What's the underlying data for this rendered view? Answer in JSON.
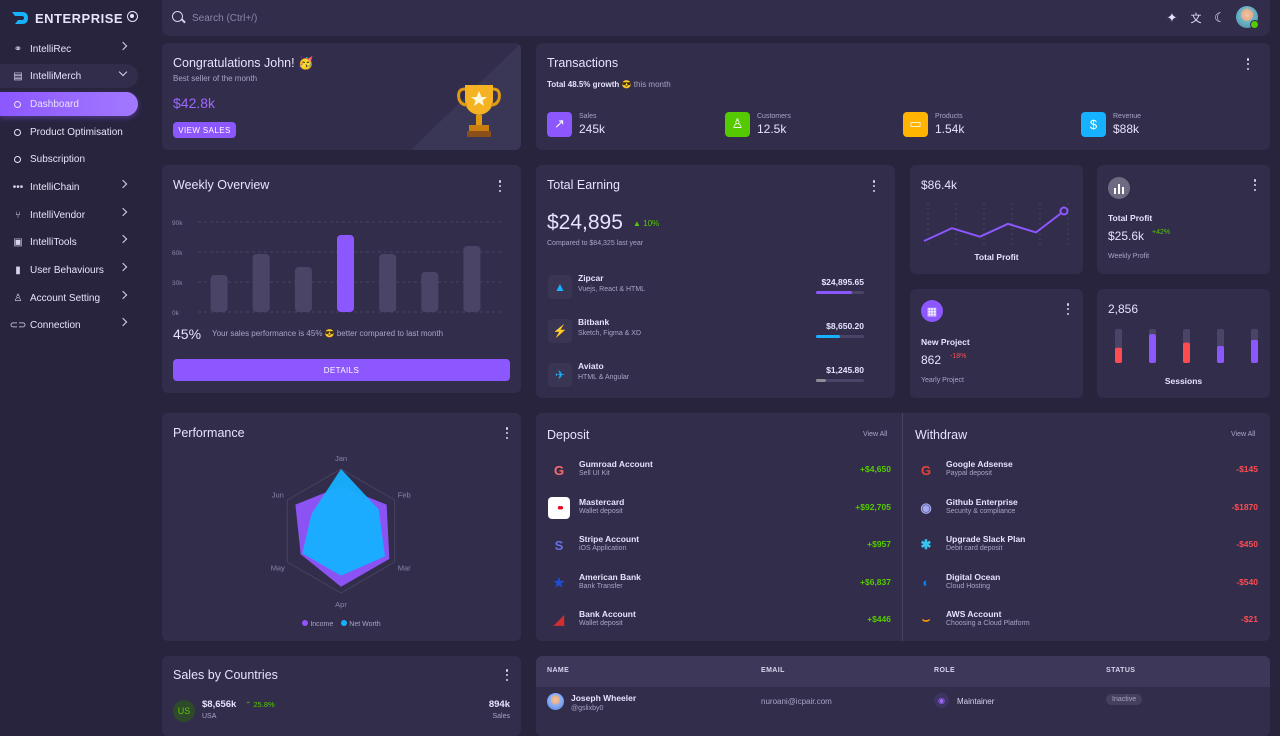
{
  "brand": {
    "name": "ENTERPRISE"
  },
  "sidebar": {
    "items": [
      {
        "label": "IntelliRec",
        "icon": "hierarchy-icon"
      },
      {
        "label": "IntelliMerch",
        "icon": "receipt-search-icon"
      },
      {
        "label": "Dashboard",
        "icon": "circle-icon"
      },
      {
        "label": "Product Optimisation",
        "icon": "circle-icon"
      },
      {
        "label": "Subscription",
        "icon": "circle-icon"
      },
      {
        "label": "IntelliChain",
        "icon": "chain-dots-icon"
      },
      {
        "label": "IntelliVendor",
        "icon": "git-branch-icon"
      },
      {
        "label": "IntelliTools",
        "icon": "toolbox-icon"
      },
      {
        "label": "User Behaviours",
        "icon": "bar-chart-icon"
      },
      {
        "label": "Account Setting",
        "icon": "user-settings-icon"
      },
      {
        "label": "Connection",
        "icon": "link-icon"
      }
    ]
  },
  "search": {
    "placeholder": "Search (Ctrl+/)"
  },
  "congrats": {
    "title": "Congratulations John! 🥳",
    "subtitle": "Best seller of the month",
    "amount": "$42.8k",
    "button": "VIEW SALES"
  },
  "transactions": {
    "title": "Transactions",
    "growth_bold": "Total 48.5% growth",
    "growth_emoji": "😎",
    "growth_rest": "this month",
    "stats": [
      {
        "label": "Sales",
        "value": "245k",
        "color": "#8c57ff",
        "icon": "trending-up-icon"
      },
      {
        "label": "Customers",
        "value": "12.5k",
        "color": "#56ca00",
        "icon": "account-icon"
      },
      {
        "label": "Products",
        "value": "1.54k",
        "color": "#ffb400",
        "icon": "cellphone-link-icon"
      },
      {
        "label": "Revenue",
        "value": "$88k",
        "color": "#16b1ff",
        "icon": "dollar-icon"
      }
    ]
  },
  "weekly": {
    "title": "Weekly Overview",
    "yticks": [
      "90k",
      "60k",
      "30k",
      "0k"
    ],
    "percent": "45%",
    "message": "Your sales performance is 45% 😎 better compared to last month",
    "button": "DETAILS"
  },
  "chart_data": {
    "type": "bar",
    "categories": [
      "",
      "",
      "",
      "",
      "",
      "",
      ""
    ],
    "values": [
      37,
      58,
      45,
      77,
      58,
      40,
      66
    ],
    "ylim": [
      0,
      90
    ],
    "ylabel": "",
    "xlabel": "",
    "title": "",
    "highlight_index": 3
  },
  "earning": {
    "title": "Total Earning",
    "amount": "$24,895",
    "change": "10%",
    "compare": "Compared to $84,325 last year",
    "rows": [
      {
        "name": "Zipcar",
        "desc": "Vuejs, React & HTML",
        "amount": "$24,895.65",
        "progress": 0.75,
        "color": "#8c57ff",
        "icon": "zipcar-icon",
        "glyph": "▲",
        "glyph_color": "#16b1ff"
      },
      {
        "name": "Bitbank",
        "desc": "Sketch, Figma & XD",
        "amount": "$8,650.20",
        "progress": 0.5,
        "color": "#16b1ff",
        "icon": "bolt-icon",
        "glyph": "⚡",
        "glyph_color": "#ffb400"
      },
      {
        "name": "Aviato",
        "desc": "HTML & Angular",
        "amount": "$1,245.80",
        "progress": 0.2,
        "color": "#8a8d93",
        "icon": "aviato-icon",
        "glyph": "✈",
        "glyph_color": "#16b1ff"
      }
    ]
  },
  "profit": {
    "value": "$86.4k",
    "label": "Total Profit",
    "line": [
      2,
      5,
      3,
      6,
      4,
      9
    ]
  },
  "weekly_profit": {
    "title": "Total Profit",
    "value": "$25.6k",
    "change": "+42%",
    "sub": "Weekly Profit"
  },
  "new_project": {
    "title": "New Project",
    "value": "862",
    "change": "-18%",
    "sub": "Yearly Project"
  },
  "sessions": {
    "value": "2,856",
    "label": "Sessions",
    "bars": [
      {
        "fill": 0.45,
        "color": "#ff4c51"
      },
      {
        "fill": 0.85,
        "color": "#8c57ff"
      },
      {
        "fill": 0.6,
        "color": "#ff4c51"
      },
      {
        "fill": 0.5,
        "color": "#8c57ff"
      },
      {
        "fill": 0.68,
        "color": "#8c57ff"
      }
    ]
  },
  "performance": {
    "title": "Performance",
    "axes": [
      "Jan",
      "Feb",
      "Mar",
      "Apr",
      "May",
      "Jun"
    ],
    "income": [
      0.72,
      0.85,
      0.9,
      0.9,
      0.75,
      0.85
    ],
    "networth": [
      1.0,
      0.7,
      0.82,
      0.72,
      0.72,
      0.55
    ],
    "legend": [
      "Income",
      "Net Worth"
    ],
    "colors": [
      "#9155fd",
      "#16b1ff"
    ]
  },
  "deposit": {
    "title": "Deposit",
    "view_all": "View All",
    "items": [
      {
        "name": "Gumroad Account",
        "desc": "Sell UI Kit",
        "amount": "+$4,650",
        "icon": "gumroad-icon",
        "glyph": "G",
        "bg": "transparent",
        "fg": "#ff6b6b"
      },
      {
        "name": "Mastercard",
        "desc": "Wallet deposit",
        "amount": "+$92,705",
        "icon": "mastercard-icon",
        "glyph": "●●",
        "bg": "#ffffff",
        "fg": "#eb001b"
      },
      {
        "name": "Stripe Account",
        "desc": "iOS Application",
        "amount": "+$957",
        "icon": "stripe-icon",
        "glyph": "S",
        "bg": "transparent",
        "fg": "#6772e5"
      },
      {
        "name": "American Bank",
        "desc": "Bank Transfer",
        "amount": "+$6,837",
        "icon": "star-icon",
        "glyph": "★",
        "bg": "transparent",
        "fg": "#1d4ed8"
      },
      {
        "name": "Bank Account",
        "desc": "Wallet deposit",
        "amount": "+$446",
        "icon": "bank-icon",
        "glyph": "◢",
        "bg": "transparent",
        "fg": "#d32f2f"
      }
    ]
  },
  "withdraw": {
    "title": "Withdraw",
    "view_all": "View All",
    "items": [
      {
        "name": "Google Adsense",
        "desc": "Paypal deposit",
        "amount": "-$145",
        "icon": "google-icon",
        "glyph": "G",
        "fg": "#ea4335"
      },
      {
        "name": "Github Enterprise",
        "desc": "Security & compliance",
        "amount": "-$1870",
        "icon": "github-icon",
        "glyph": "◉",
        "fg": "#a3a8f0"
      },
      {
        "name": "Upgrade Slack Plan",
        "desc": "Debit card deposit",
        "amount": "-$450",
        "icon": "slack-icon",
        "glyph": "✱",
        "fg": "#36c5f0"
      },
      {
        "name": "Digital Ocean",
        "desc": "Cloud Hosting",
        "amount": "-$540",
        "icon": "digital-ocean-icon",
        "glyph": "◐",
        "fg": "#0080ff"
      },
      {
        "name": "AWS Account",
        "desc": "Choosing a Cloud Platform",
        "amount": "-$21",
        "icon": "aws-icon",
        "glyph": "⌣",
        "fg": "#ff9900"
      }
    ]
  },
  "countries": {
    "title": "Sales by Countries",
    "row": {
      "code": "US",
      "amount": "$8,656k",
      "change": "25.8%",
      "country": "USA",
      "sales": "894k",
      "sales_label": "Sales"
    }
  },
  "table": {
    "headers": [
      "NAME",
      "EMAIL",
      "ROLE",
      "STATUS"
    ],
    "rows": [
      {
        "name": "Joseph Wheeler",
        "handle": "@gslixby0",
        "email": "nuroani@icpair.com",
        "role": "Maintainer",
        "status": "Inactive"
      }
    ]
  }
}
